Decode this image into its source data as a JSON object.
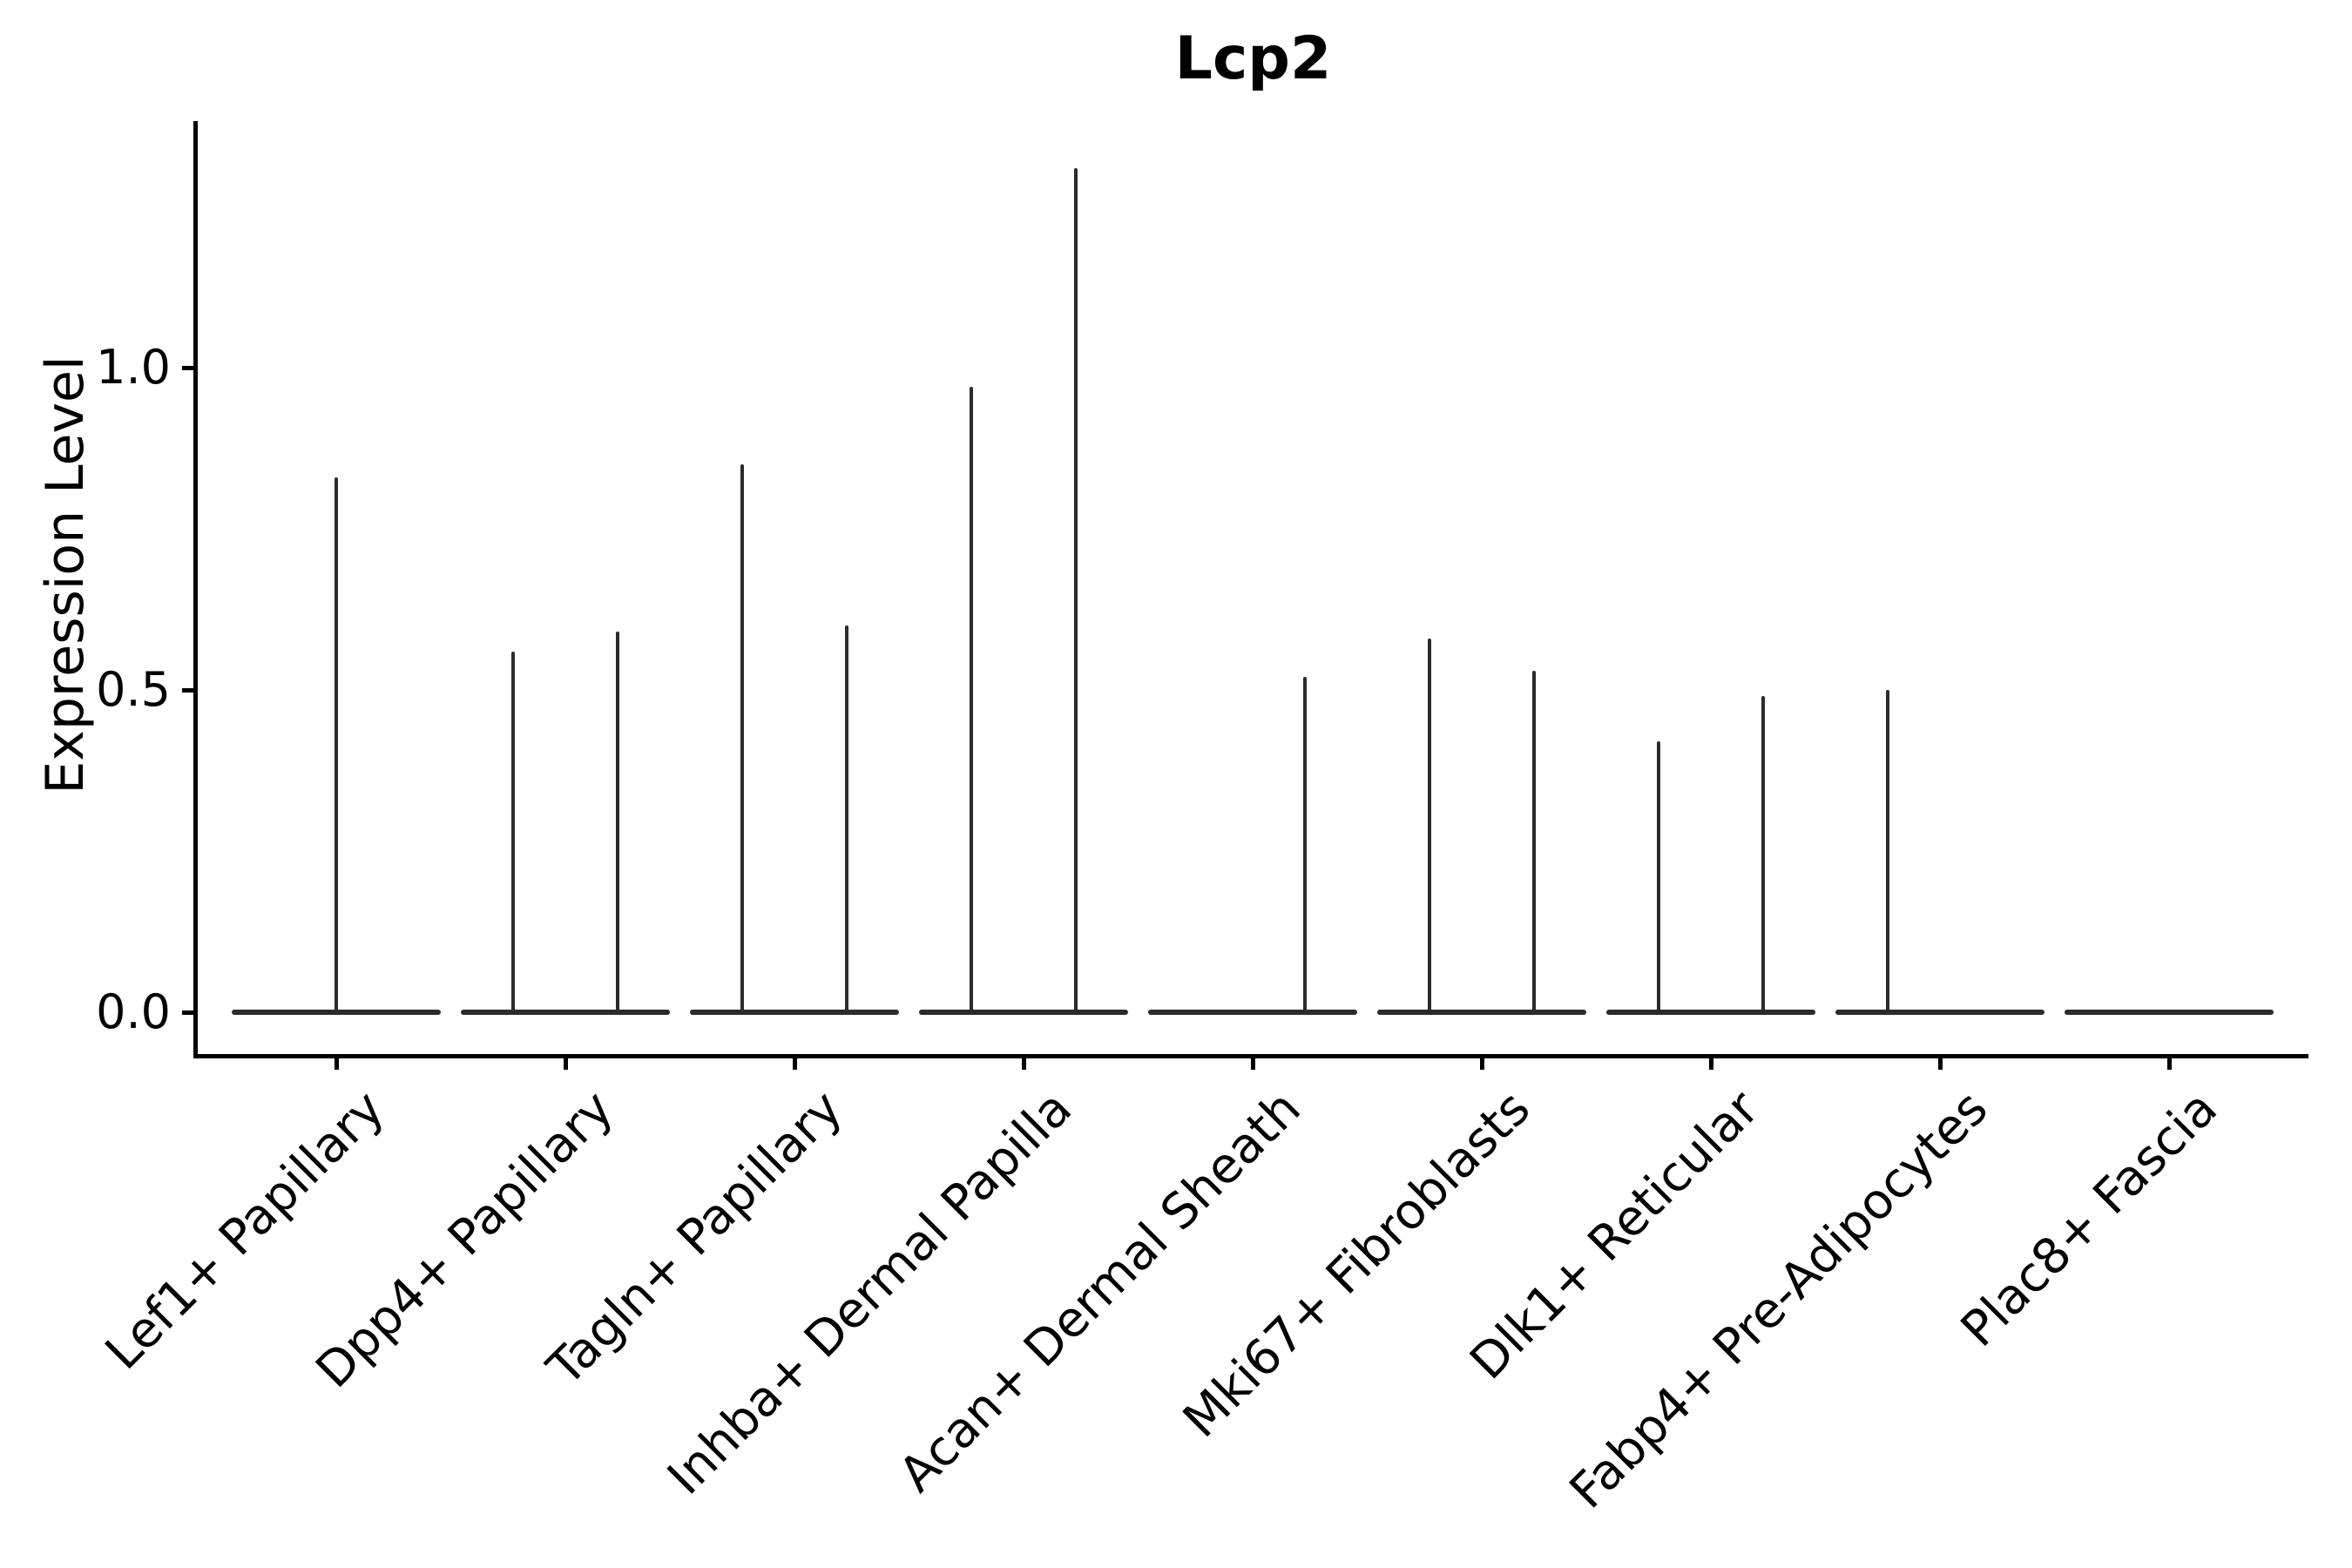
{
  "chart_data": {
    "type": "violin",
    "title": "Lcp2",
    "ylabel": "Expression Level",
    "xlabel": "",
    "y_ticks": [
      0.0,
      0.5,
      1.0
    ],
    "ylim": [
      -0.07,
      1.45
    ],
    "grid": false,
    "legend": "none",
    "categories": [
      "Lef1+ Papillary",
      "Dpp4+ Papillary",
      "Tagln+ Papillary",
      "Inhba+ Dermal Papilla",
      "Acan+ Dermal Sheath",
      "Mki67+ Fibroblasts",
      "Dlk1+ Reticular",
      "Fabp4+ Pre-Adipocytes",
      "Plac8+ Fascia"
    ],
    "violins": [
      {
        "category": "Lef1+ Papillary",
        "shapes": [
          {
            "slot": "center",
            "max": 0.83
          }
        ]
      },
      {
        "category": "Dpp4+ Papillary",
        "shapes": [
          {
            "slot": "left",
            "max": 0.56
          },
          {
            "slot": "right",
            "max": 0.59
          }
        ]
      },
      {
        "category": "Tagln+ Papillary",
        "shapes": [
          {
            "slot": "left",
            "max": 0.85
          },
          {
            "slot": "right",
            "max": 0.6
          }
        ]
      },
      {
        "category": "Inhba+ Dermal Papilla",
        "shapes": [
          {
            "slot": "left",
            "max": 0.97
          },
          {
            "slot": "right",
            "max": 1.31
          }
        ]
      },
      {
        "category": "Acan+ Dermal Sheath",
        "shapes": [
          {
            "slot": "right",
            "max": 0.52
          }
        ]
      },
      {
        "category": "Mki67+ Fibroblasts",
        "shapes": [
          {
            "slot": "left",
            "max": 0.58
          },
          {
            "slot": "right",
            "max": 0.53
          }
        ]
      },
      {
        "category": "Dlk1+ Reticular",
        "shapes": [
          {
            "slot": "left",
            "max": 0.42
          },
          {
            "slot": "right",
            "max": 0.49
          }
        ]
      },
      {
        "category": "Fabp4+ Pre-Adipocytes",
        "shapes": [
          {
            "slot": "left",
            "max": 0.5
          }
        ]
      },
      {
        "category": "Plac8+ Fascia",
        "shapes": []
      }
    ],
    "baseline_value": 0.0,
    "colors": {
      "violin": "#2b2b2b",
      "axis": "#000000",
      "background": "#ffffff"
    }
  }
}
